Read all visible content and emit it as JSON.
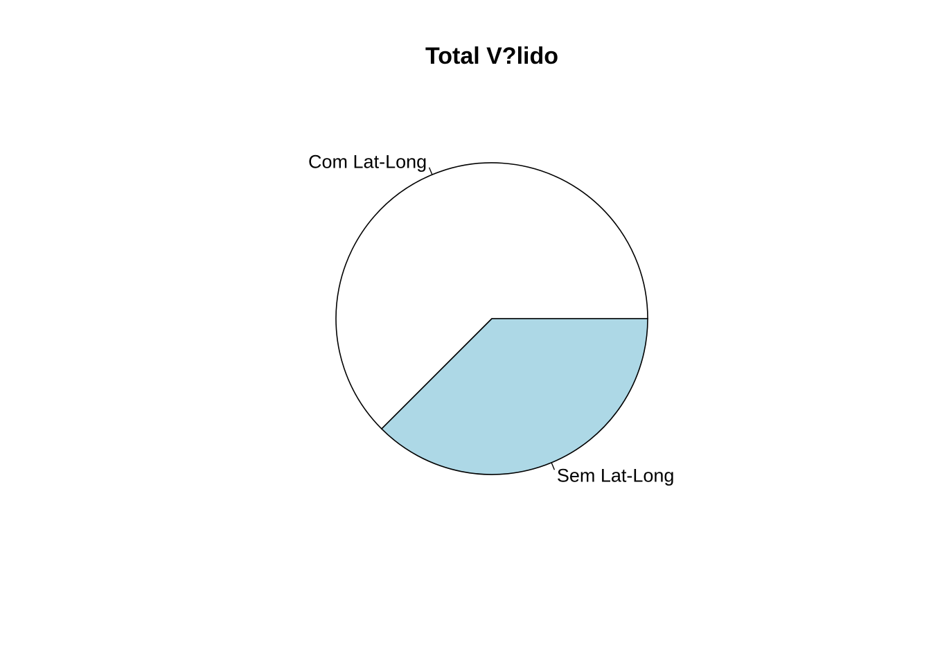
{
  "chart_data": {
    "type": "pie",
    "title": "Total V?lido",
    "slices": [
      {
        "label": "Com Lat-Long",
        "value": 62.5,
        "color": "#ffffff"
      },
      {
        "label": "Sem Lat-Long",
        "value": 37.5,
        "color": "#add8e6"
      }
    ],
    "start_angle_deg": 0,
    "direction": "counterclockwise"
  }
}
